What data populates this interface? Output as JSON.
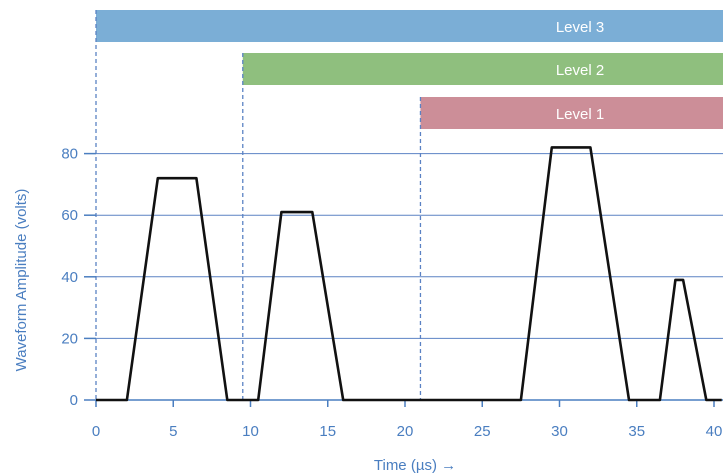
{
  "chart_data": {
    "type": "line",
    "xlabel": "Time (µs) →",
    "ylabel": "Waveform Amplitude (volts)",
    "xlim": [
      0,
      40.5
    ],
    "ylim": [
      0,
      80
    ],
    "xticks": [
      0,
      5,
      10,
      15,
      20,
      25,
      30,
      35,
      40
    ],
    "yticks": [
      0,
      20,
      40,
      60,
      80
    ],
    "grid": "horizontal",
    "series": [
      {
        "x": [
          0,
          2,
          4,
          6.5,
          8.5,
          10.5,
          12,
          14,
          16,
          27.5,
          29.5,
          32,
          34.5,
          35.5,
          36.5,
          37.5,
          38,
          39.5,
          40.5
        ],
        "y": [
          0,
          0,
          72,
          72,
          0,
          0,
          61,
          61,
          0,
          0,
          82,
          82,
          0,
          0,
          0,
          39,
          39,
          0,
          0
        ]
      }
    ],
    "levels": [
      {
        "label": "Level 3",
        "start": 0,
        "color": "#7baed6"
      },
      {
        "label": "Level 2",
        "start": 9.5,
        "color": "#8fbf7e"
      },
      {
        "label": "Level 1",
        "start": 21,
        "color": "#cc8e98"
      }
    ],
    "colors": {
      "axis": "#4a7ec0",
      "line": "#111111",
      "divider": "#5b82c4"
    }
  }
}
